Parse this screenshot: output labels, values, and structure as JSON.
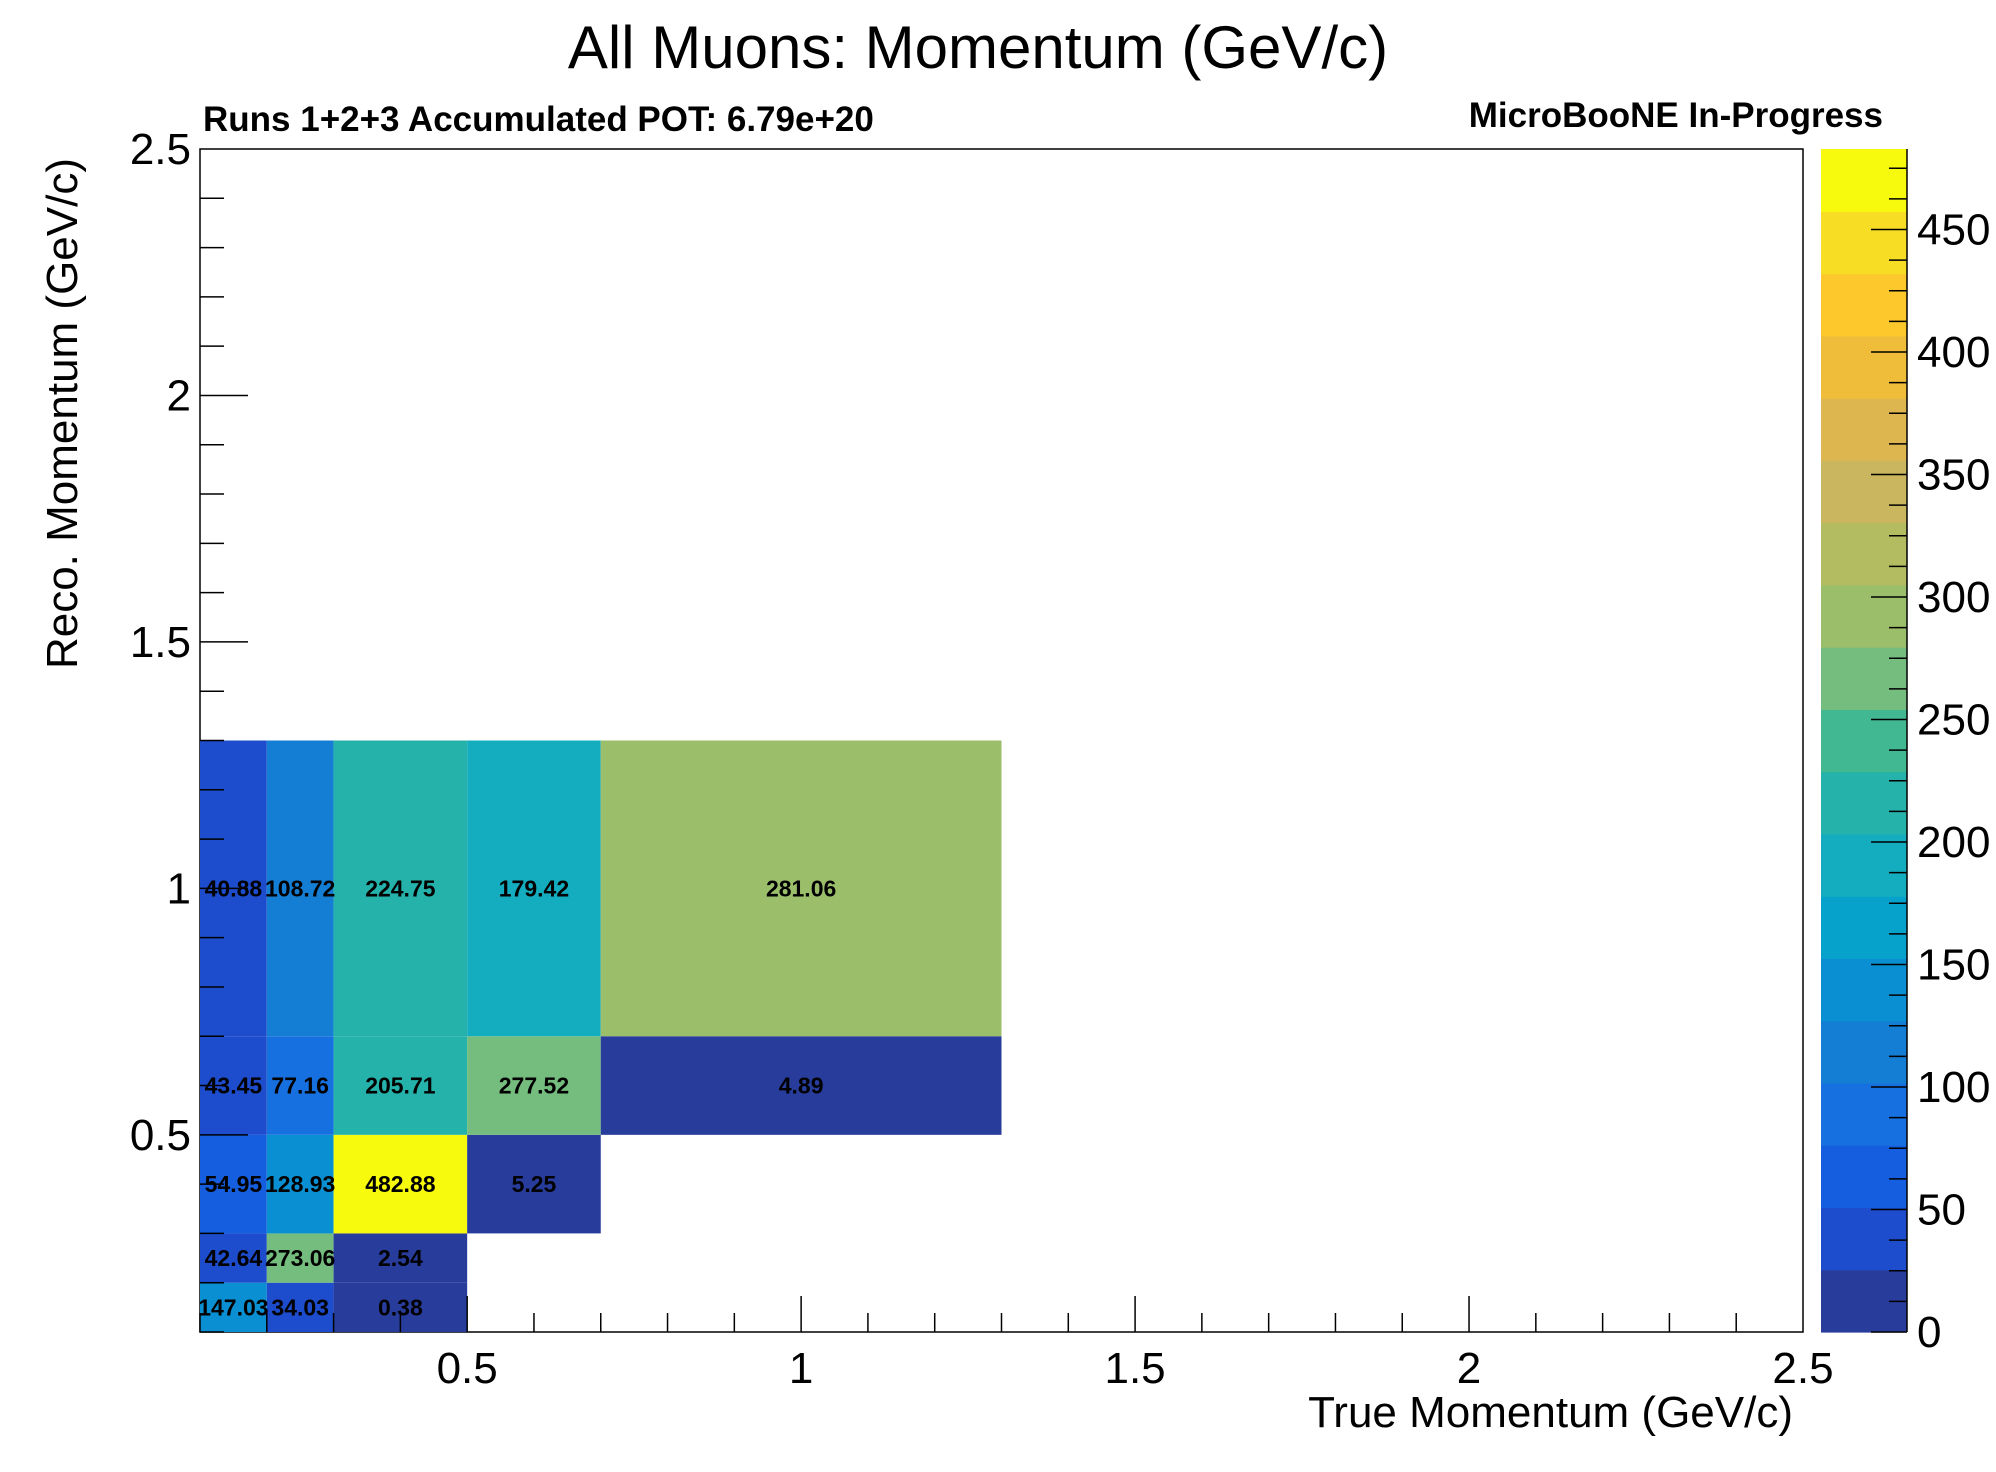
{
  "chart_data": {
    "type": "heatmap",
    "title": "All Muons: Momentum (GeV/c)",
    "subtitle_left": "Runs 1+2+3 Accumulated POT: 6.79e+20",
    "subtitle_right": "MicroBooNE In-Progress",
    "xlabel": "True Momentum (GeV/c)",
    "ylabel": "Reco. Momentum (GeV/c)",
    "xlim": [
      0.1,
      2.5
    ],
    "ylim": [
      0.1,
      2.5
    ],
    "x_ticks": [
      "0.5",
      "1",
      "1.5",
      "2",
      "2.5"
    ],
    "y_ticks": [
      "0.5",
      "1",
      "1.5",
      "2",
      "2.5"
    ],
    "x_bin_edges": [
      0.1,
      0.2,
      0.3,
      0.5,
      0.7,
      1.3
    ],
    "y_bin_edges": [
      0.1,
      0.2,
      0.3,
      0.5,
      0.7,
      1.3
    ],
    "values": [
      [
        147.03,
        34.03,
        0.38,
        null,
        null
      ],
      [
        42.64,
        273.06,
        2.54,
        null,
        null
      ],
      [
        54.95,
        128.93,
        482.88,
        5.25,
        null
      ],
      [
        43.45,
        77.16,
        205.71,
        277.52,
        4.89
      ],
      [
        40.88,
        108.72,
        224.75,
        179.42,
        281.06
      ]
    ],
    "cell_labels": [
      [
        "147.03",
        "34.03",
        "0.38",
        "",
        ""
      ],
      [
        "42.64",
        "273.06",
        "2.54",
        "",
        ""
      ],
      [
        "54.95",
        "128.93",
        "482.88",
        "5.25",
        ""
      ],
      [
        "43.45",
        "77.16",
        "205.71",
        "277.52",
        "4.89"
      ],
      [
        "40.88",
        "108.72",
        "224.75",
        "179.42",
        "281.06"
      ]
    ],
    "zlim": [
      0,
      482.88
    ],
    "colorbar_ticks": [
      "0",
      "50",
      "100",
      "150",
      "200",
      "250",
      "300",
      "350",
      "400",
      "450"
    ],
    "palette": [
      "#283c9c",
      "#1d4ccc",
      "#155ee0",
      "#1770df",
      "#147ed4",
      "#0a90d2",
      "#07a2cc",
      "#13adbf",
      "#24b2ab",
      "#41b891",
      "#74bd7e",
      "#9bbe6a",
      "#b3bc60",
      "#c9b65f",
      "#ddb650",
      "#f0bd3a",
      "#fcc82c",
      "#f7dd24",
      "#f8fa0d"
    ]
  }
}
